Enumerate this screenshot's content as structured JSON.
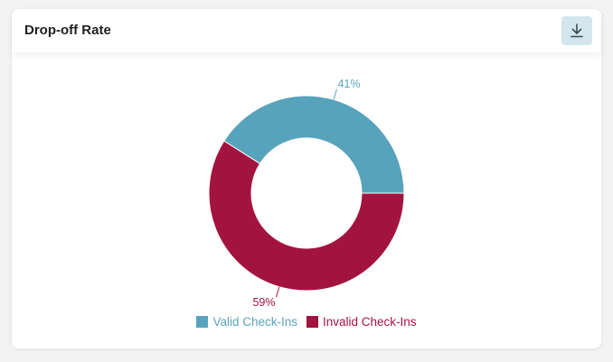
{
  "card": {
    "title": "Drop-off Rate"
  },
  "icons": {
    "download": "download-icon"
  },
  "colors": {
    "valid": "#58a3bc",
    "invalid": "#a31340",
    "download_bg": "#d3e6ee"
  },
  "chart_data": {
    "type": "pie",
    "variant": "donut",
    "categories": [
      "Valid Check-Ins",
      "Invalid Check-Ins"
    ],
    "values": [
      41,
      59
    ],
    "labels": [
      "41%",
      "59%"
    ],
    "legend_position": "bottom"
  }
}
